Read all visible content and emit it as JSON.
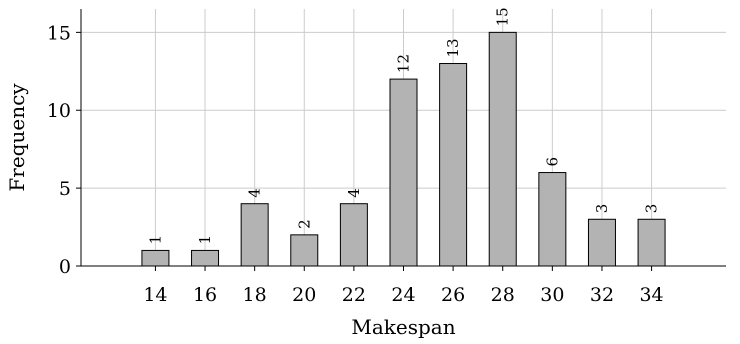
{
  "chart_data": {
    "type": "bar",
    "categories": [
      "14",
      "16",
      "18",
      "20",
      "22",
      "24",
      "26",
      "28",
      "30",
      "32",
      "34"
    ],
    "x": [
      14,
      16,
      18,
      20,
      22,
      24,
      26,
      28,
      30,
      32,
      34
    ],
    "values": [
      1,
      1,
      4,
      2,
      4,
      12,
      13,
      15,
      6,
      3,
      3
    ],
    "xlabel": "Makespan",
    "ylabel": "Frequency",
    "xlim": [
      11,
      37
    ],
    "ylim": [
      0,
      16.5
    ],
    "yticks": [
      0,
      5,
      10,
      15
    ],
    "grid": true,
    "data_labels": true,
    "colors": {
      "bar_fill": "#b3b3b3",
      "bar_stroke": "#000000",
      "grid": "#cccccc",
      "axis": "#000000"
    }
  }
}
